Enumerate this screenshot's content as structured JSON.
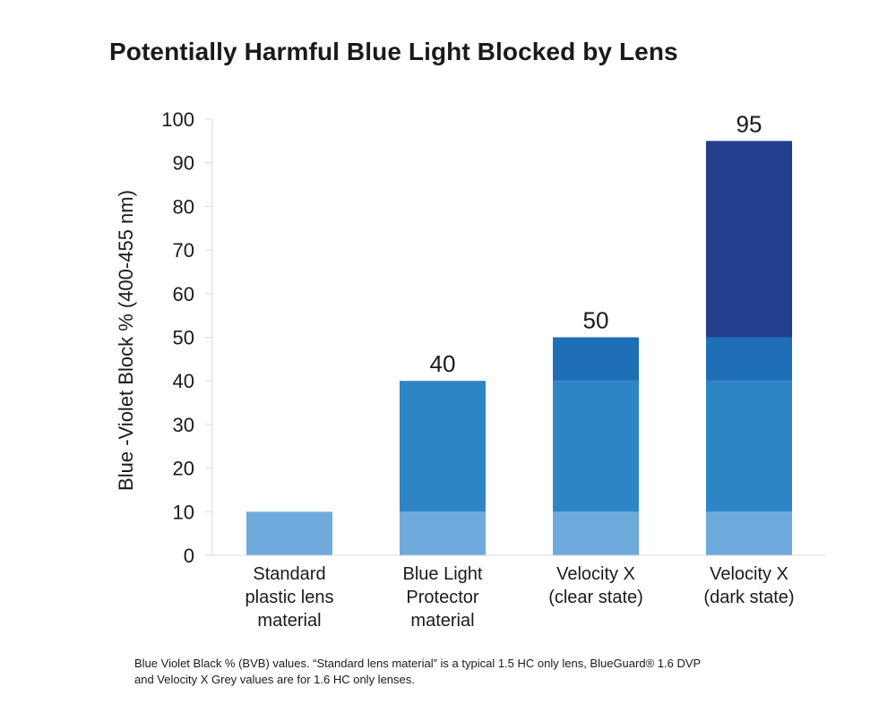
{
  "chart_data": {
    "type": "bar",
    "stacked": true,
    "title": "Potentially Harmful Blue Light Blocked by Lens",
    "ylabel": "Blue -Violet Block % (400-455 nm)",
    "xlabel": "",
    "ylim": [
      0,
      100
    ],
    "yticks": [
      0,
      10,
      20,
      30,
      40,
      50,
      60,
      70,
      80,
      90,
      100
    ],
    "grid": false,
    "categories": [
      [
        "Standard",
        "plastic lens",
        "material"
      ],
      [
        "Blue Light",
        "Protector",
        "material"
      ],
      [
        "Velocity X",
        "(clear state)"
      ],
      [
        "Velocity X",
        "(dark state)"
      ]
    ],
    "segment_colors": [
      "#6eaadb",
      "#2e85c6",
      "#1f6fb7",
      "#233f8d"
    ],
    "bars": [
      {
        "segments": [
          10
        ],
        "total_label": ""
      },
      {
        "segments": [
          10,
          30
        ],
        "total_label": "40"
      },
      {
        "segments": [
          10,
          30,
          10
        ],
        "total_label": "50"
      },
      {
        "segments": [
          10,
          30,
          10,
          45
        ],
        "total_label": "95"
      }
    ]
  },
  "footnote": [
    "Blue Violet Black % (BVB) values. “Standard lens material” is a typical 1.5 HC only lens, BlueGuard® 1.6 DVP",
    "and Velocity X Grey values are for 1.6 HC only lenses."
  ]
}
